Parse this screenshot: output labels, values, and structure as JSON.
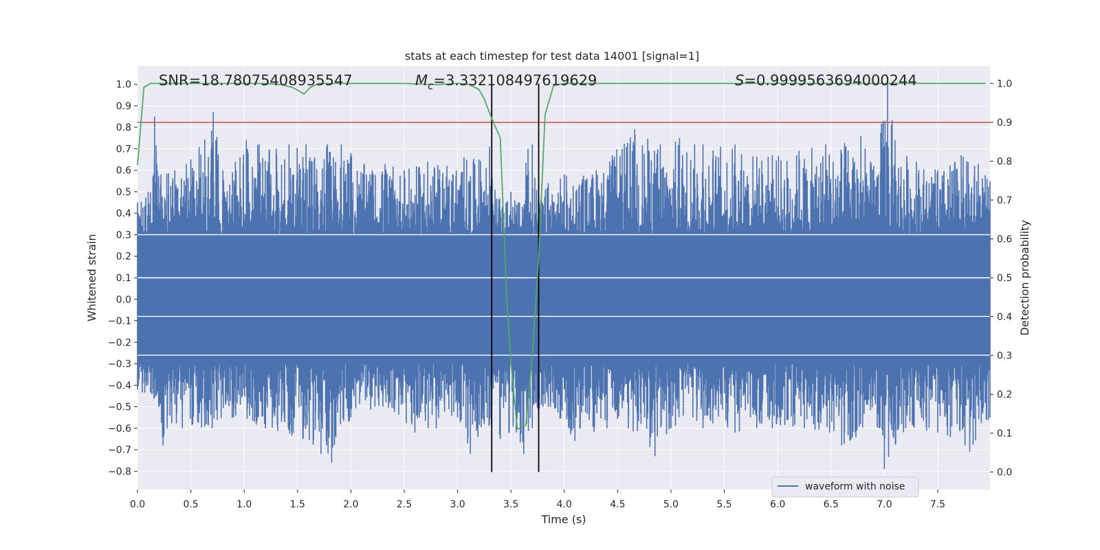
{
  "chart_data": {
    "type": "line",
    "title": "stats at each timestep for test data 14001 [signal=1]",
    "xlabel": "Time (s)",
    "ylabel_left": "Whitened strain",
    "ylabel_right": "Detection probability",
    "xlim": [
      0.0,
      7.99
    ],
    "ylim_left": [
      -0.885,
      1.085
    ],
    "ylim_right": [
      -0.045,
      1.045
    ],
    "x_ticks": [
      0.0,
      0.5,
      1.0,
      1.5,
      2.0,
      2.5,
      3.0,
      3.5,
      4.0,
      4.5,
      5.0,
      5.5,
      6.0,
      6.5,
      7.0,
      7.5
    ],
    "x_tick_labels": [
      "0.0",
      "0.5",
      "1.0",
      "1.5",
      "2.0",
      "2.5",
      "3.0",
      "3.5",
      "4.0",
      "4.5",
      "5.0",
      "5.5",
      "6.0",
      "6.5",
      "7.0",
      "7.5"
    ],
    "y_left_ticks": [
      1.0,
      0.9,
      0.8,
      0.7,
      0.6,
      0.5,
      0.4,
      0.3,
      0.2,
      0.1,
      0.0,
      -0.1,
      -0.2,
      -0.3,
      -0.4,
      -0.5,
      -0.6,
      -0.7,
      -0.8
    ],
    "y_left_tick_labels": [
      "1.0",
      "0.9",
      "0.8",
      "0.7",
      "0.6",
      "0.5",
      "0.4",
      "0.3",
      "0.2",
      "0.1",
      "0.0",
      "−0.1",
      "−0.2",
      "−0.3",
      "−0.4",
      "−0.5",
      "−0.6",
      "−0.7",
      "−0.8"
    ],
    "y_right_ticks": [
      1.0,
      0.9,
      0.8,
      0.7,
      0.6,
      0.5,
      0.4,
      0.3,
      0.2,
      0.1,
      0.0
    ],
    "y_right_tick_labels": [
      "1.0",
      "0.9",
      "0.8",
      "0.7",
      "0.6",
      "0.5",
      "0.4",
      "0.3",
      "0.2",
      "0.1",
      "0.0"
    ],
    "grid": true,
    "legend": {
      "entries": [
        "waveform with noise"
      ],
      "placement": "lower-right"
    },
    "annotations": {
      "snr": "SNR=18.78075408935547",
      "mc_symbol": "M",
      "mc_sub": "c",
      "mc_value": "=3.332108497619629",
      "s_symbol": "S",
      "s_value": "=0.9999563694000244"
    },
    "colors": {
      "background": "#eaeaf2",
      "grid": "#ffffff",
      "waveform": "#4c72b0",
      "probability": "#55a868",
      "threshold": "#c44e52",
      "markers": "#000000"
    },
    "threshold_right": 0.9,
    "vertical_markers_x": [
      3.32,
      3.76
    ],
    "probability_series": {
      "name": "Detection probability",
      "x": [
        0.0,
        0.06,
        0.12,
        0.2,
        0.4,
        0.8,
        1.2,
        1.35,
        1.45,
        1.52,
        1.56,
        1.62,
        1.7,
        2.0,
        2.5,
        2.8,
        3.0,
        3.1,
        3.2,
        3.25,
        3.32,
        3.4,
        3.46,
        3.5,
        3.56,
        3.64,
        3.7,
        3.76,
        3.82,
        3.9,
        4.0,
        4.5,
        5.0,
        6.0,
        7.0,
        7.95
      ],
      "y": [
        0.79,
        0.99,
        1.0,
        1.0,
        1.0,
        1.0,
        1.0,
        0.997,
        0.99,
        0.98,
        0.973,
        0.99,
        1.0,
        1.0,
        1.0,
        0.997,
        1.0,
        0.998,
        0.985,
        0.96,
        0.91,
        0.86,
        0.45,
        0.28,
        0.11,
        0.12,
        0.3,
        0.55,
        0.92,
        0.995,
        1.0,
        1.0,
        1.0,
        1.0,
        1.0,
        1.0
      ]
    },
    "waveform_series": {
      "name": "waveform with noise",
      "envelope_top_x": [
        0.0,
        0.1,
        0.16,
        0.22,
        0.35,
        0.5,
        0.71,
        0.8,
        1.02,
        1.14,
        1.3,
        1.42,
        1.58,
        1.66,
        1.78,
        1.91,
        2.0,
        2.2,
        2.32,
        2.5,
        2.72,
        2.9,
        3.06,
        3.2,
        3.3,
        3.32,
        3.42,
        3.5,
        3.58,
        3.66,
        3.7,
        3.76,
        3.85,
        4.0,
        4.3,
        4.66,
        4.9,
        5.08,
        5.3,
        5.6,
        5.95,
        6.2,
        6.45,
        6.78,
        6.9,
        7.03,
        7.1,
        7.3,
        7.5,
        7.72,
        7.88,
        7.99
      ],
      "envelope_top_y": [
        0.45,
        0.5,
        0.85,
        0.58,
        0.6,
        0.65,
        0.87,
        0.6,
        0.74,
        0.72,
        0.7,
        0.72,
        0.72,
        0.66,
        0.72,
        0.72,
        0.68,
        0.6,
        0.63,
        0.6,
        0.64,
        0.62,
        0.66,
        0.65,
        0.71,
        0.58,
        0.43,
        0.5,
        0.45,
        0.7,
        0.72,
        0.46,
        0.54,
        0.58,
        0.6,
        0.79,
        0.72,
        0.75,
        0.72,
        0.72,
        0.67,
        0.69,
        0.72,
        0.76,
        0.62,
        1.0,
        0.74,
        0.64,
        0.6,
        0.67,
        0.63,
        0.55
      ],
      "envelope_bottom_x": [
        0.0,
        0.2,
        0.24,
        0.42,
        0.7,
        0.9,
        1.2,
        1.55,
        1.72,
        1.82,
        2.0,
        2.3,
        2.6,
        2.8,
        3.0,
        3.12,
        3.25,
        3.4,
        3.55,
        3.62,
        3.7,
        3.85,
        4.1,
        4.4,
        4.6,
        4.85,
        5.0,
        5.3,
        5.6,
        5.95,
        6.25,
        6.6,
        6.95,
        7.0,
        7.2,
        7.5,
        7.8,
        7.99
      ],
      "envelope_bottom_y": [
        -0.42,
        -0.5,
        -0.68,
        -0.6,
        -0.6,
        -0.55,
        -0.6,
        -0.65,
        -0.72,
        -0.76,
        -0.55,
        -0.5,
        -0.62,
        -0.6,
        -0.55,
        -0.72,
        -0.58,
        -0.65,
        -0.62,
        -0.72,
        -0.6,
        -0.5,
        -0.66,
        -0.6,
        -0.6,
        -0.73,
        -0.6,
        -0.6,
        -0.62,
        -0.6,
        -0.6,
        -0.68,
        -0.6,
        -0.79,
        -0.6,
        -0.62,
        -0.71,
        -0.55
      ]
    }
  }
}
